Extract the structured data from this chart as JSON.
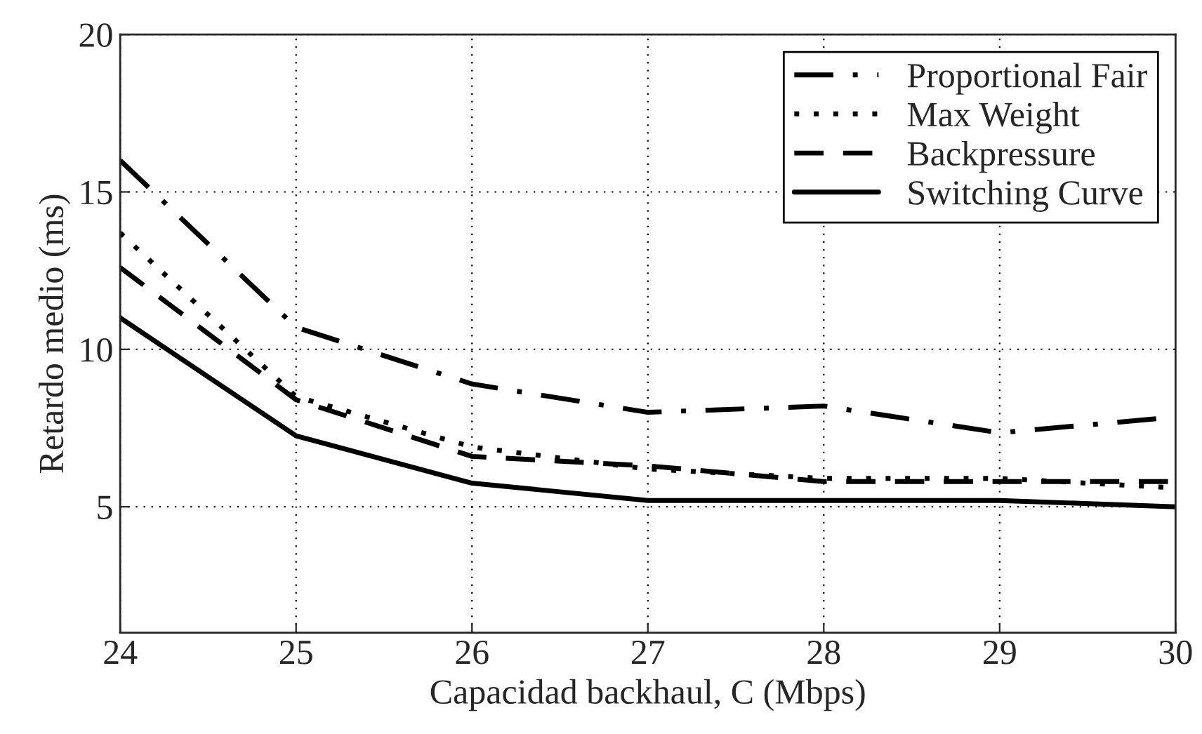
{
  "chart_data": {
    "type": "line",
    "xlabel": "Capacidad backhaul, C (Mbps)",
    "ylabel": "Retardo medio (ms)",
    "x": [
      24,
      25,
      26,
      27,
      28,
      29,
      30
    ],
    "series": [
      {
        "name": "Proportional Fair",
        "color": "#000000",
        "line_style": "dashdot",
        "values": [
          16.0,
          10.7,
          8.9,
          8.0,
          8.2,
          7.35,
          7.85
        ]
      },
      {
        "name": "Max Weight",
        "color": "#000000",
        "line_style": "dotted",
        "values": [
          13.7,
          8.5,
          6.9,
          6.2,
          5.9,
          5.9,
          5.6
        ]
      },
      {
        "name": "Backpressure",
        "color": "#000000",
        "line_style": "dashed",
        "values": [
          12.6,
          8.4,
          6.6,
          6.3,
          5.8,
          5.8,
          5.8
        ]
      },
      {
        "name": "Switching Curve",
        "color": "#000000",
        "line_style": "solid",
        "values": [
          11.0,
          7.25,
          5.75,
          5.2,
          5.2,
          5.2,
          5.0
        ]
      }
    ],
    "xlim": [
      24,
      30
    ],
    "ylim": [
      1,
      20
    ],
    "xticks": [
      24,
      25,
      26,
      27,
      28,
      29,
      30
    ],
    "yticks": [
      5,
      10,
      15,
      20
    ],
    "grid": true,
    "legend": "top right"
  }
}
